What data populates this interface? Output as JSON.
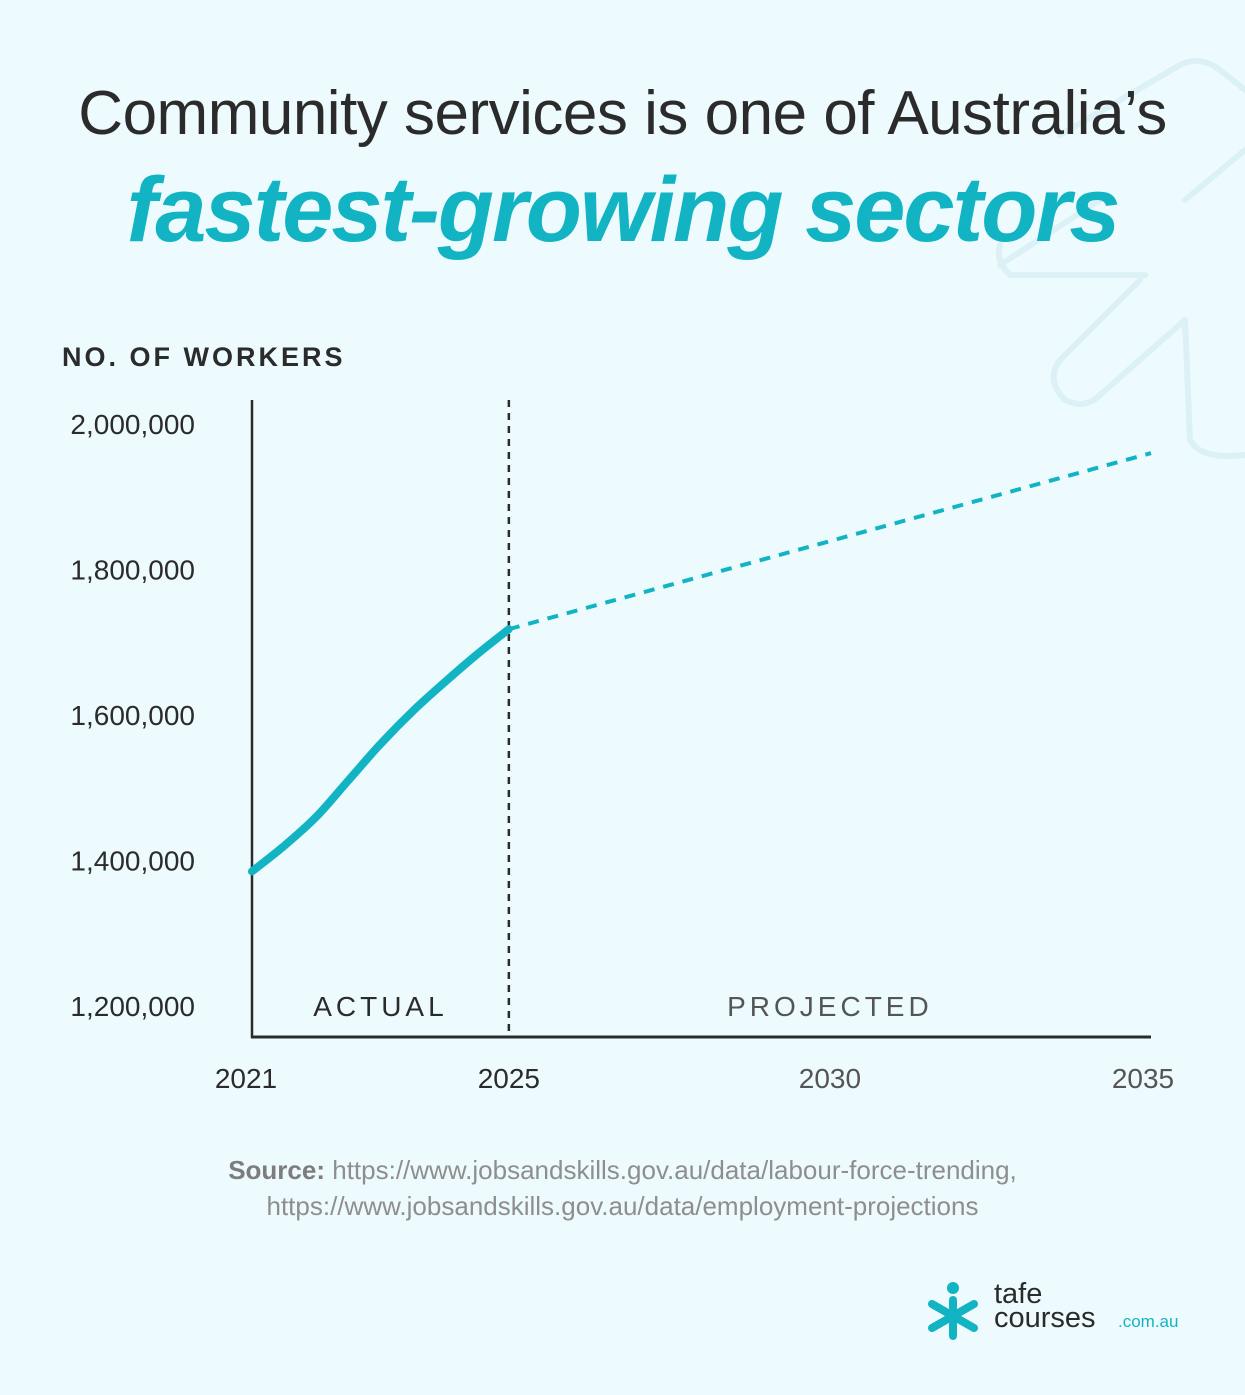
{
  "title": {
    "line1": "Community services is one of Australia’s",
    "line2": "fastest-growing sectors"
  },
  "colors": {
    "accent": "#12b4c3",
    "text": "#2b2b2b",
    "background": "#eefbfe"
  },
  "chart_data": {
    "type": "line",
    "ylabel": "NO. OF WORKERS",
    "ylim": [
      1200000,
      2000000
    ],
    "yticks": [
      2000000,
      1800000,
      1600000,
      1400000,
      1200000
    ],
    "ytick_labels": [
      "2,000,000",
      "1,800,000",
      "1,600,000",
      "1,400,000",
      "1,200,000"
    ],
    "xlim": [
      2021,
      2035
    ],
    "xticks": [
      2021,
      2025,
      2030,
      2035
    ],
    "xtick_labels": [
      "2021",
      "2025",
      "2030",
      "2035"
    ],
    "divider_x": 2025,
    "region_labels": [
      "ACTUAL",
      "PROJECTED"
    ],
    "series": [
      {
        "style": "solid",
        "x": [
          2021,
          2021.5,
          2022,
          2022.5,
          2023,
          2023.5,
          2024,
          2024.5,
          2025
        ],
        "y": [
          1385000,
          1420000,
          1460000,
          1510000,
          1560000,
          1605000,
          1645000,
          1683000,
          1718000
        ]
      },
      {
        "style": "dashed",
        "x": [
          2025,
          2035
        ],
        "y": [
          1718000,
          1960000
        ]
      }
    ],
    "grid": false
  },
  "source": {
    "label": "Source:",
    "line1": " https://www.jobsandskills.gov.au/data/labour-force-trending,",
    "line2": "https://www.jobsandskills.gov.au/data/employment-projections"
  },
  "logo": {
    "word1": "tafe",
    "word2": "courses",
    "suffix": ".com.au",
    "icon": "asterisk-person-icon"
  }
}
